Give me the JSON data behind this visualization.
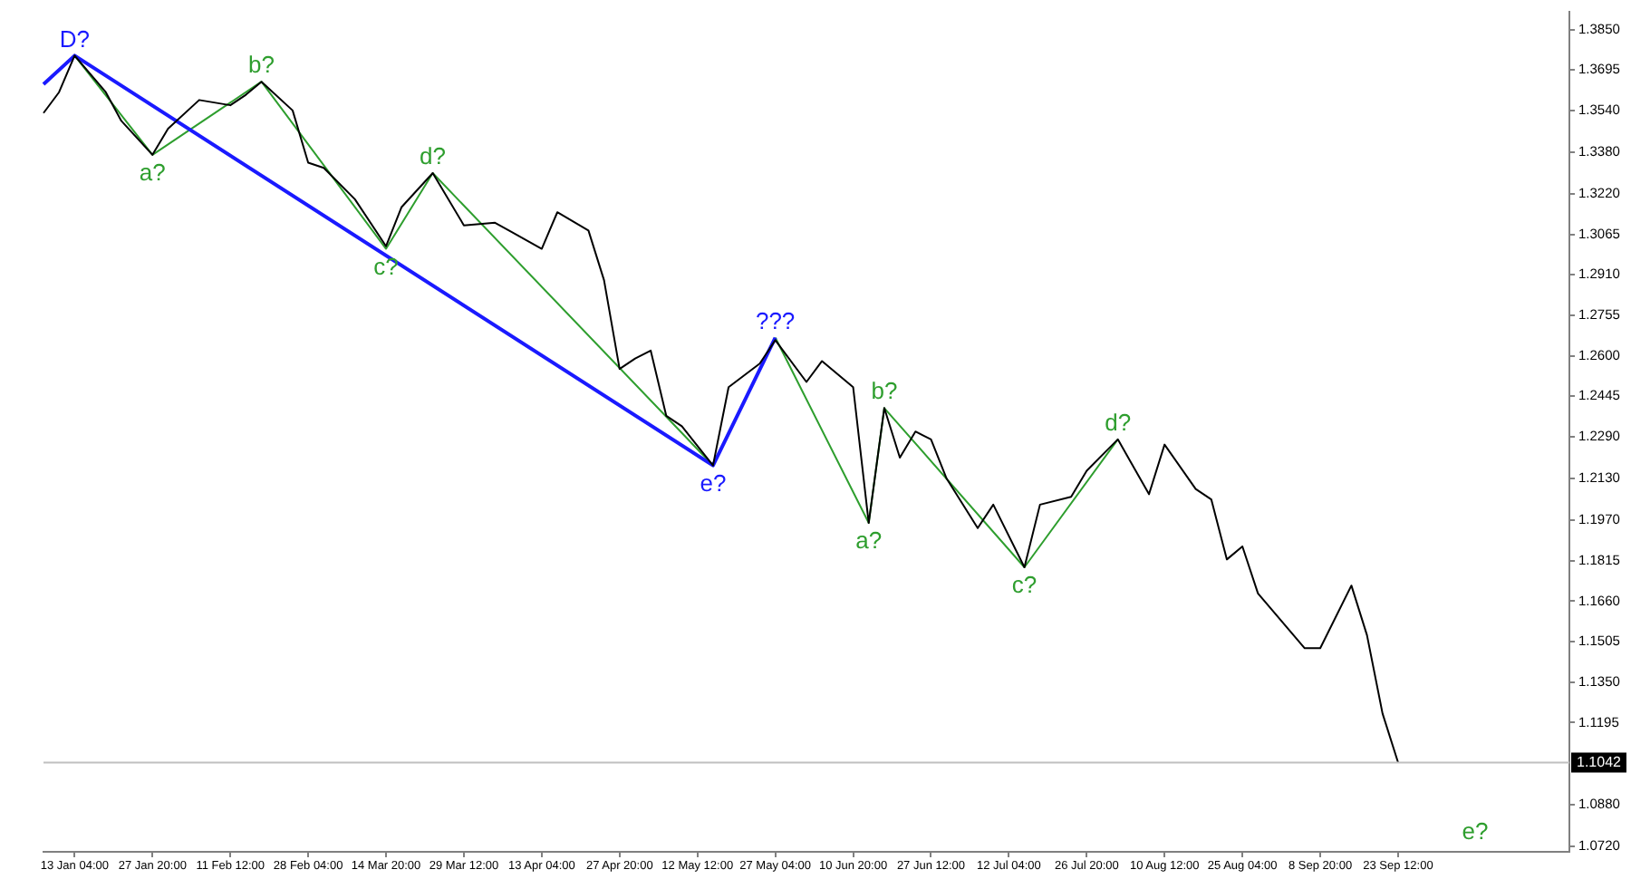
{
  "chart_data": {
    "type": "line",
    "categories": [
      null,
      null,
      "13 Jan 04:00",
      null,
      null,
      null,
      null,
      "27 Jan 20:00",
      null,
      null,
      null,
      null,
      "11 Feb 12:00",
      null,
      null,
      null,
      null,
      "28 Feb 04:00",
      null,
      null,
      null,
      null,
      "14 Mar 20:00",
      null,
      null,
      null,
      null,
      "29 Mar 12:00",
      null,
      null,
      null,
      null,
      "13 Apr 04:00",
      null,
      null,
      null,
      null,
      "27 Apr 20:00",
      null,
      null,
      null,
      null,
      "12 May 12:00",
      null,
      null,
      null,
      null,
      "27 May 04:00",
      null,
      null,
      null,
      null,
      "10 Jun 20:00",
      null,
      null,
      null,
      null,
      "27 Jun 12:00",
      null,
      null,
      null,
      null,
      "12 Jul 04:00",
      null,
      null,
      null,
      null,
      "26 Jul 20:00",
      null,
      null,
      null,
      null,
      "10 Aug 12:00",
      null,
      null,
      null,
      null,
      "25 Aug 04:00",
      null,
      null,
      null,
      null,
      "8 Sep 20:00",
      null,
      null,
      null,
      null,
      "23 Sep 12:00",
      null,
      null,
      null,
      null,
      null,
      null,
      null,
      null,
      null,
      null,
      null
    ],
    "ylim": [
      1.07,
      1.3918
    ],
    "yticks": [
      {
        "value": 1.385,
        "label": "1.3850"
      },
      {
        "value": 1.3695,
        "label": "1.3695"
      },
      {
        "value": 1.354,
        "label": "1.3540"
      },
      {
        "value": 1.338,
        "label": "1.3380"
      },
      {
        "value": 1.322,
        "label": "1.3220"
      },
      {
        "value": 1.3065,
        "label": "1.3065"
      },
      {
        "value": 1.291,
        "label": "1.2910"
      },
      {
        "value": 1.2755,
        "label": "1.2755"
      },
      {
        "value": 1.26,
        "label": "1.2600"
      },
      {
        "value": 1.2445,
        "label": "1.2445"
      },
      {
        "value": 1.229,
        "label": "1.2290"
      },
      {
        "value": 1.213,
        "label": "1.2130"
      },
      {
        "value": 1.197,
        "label": "1.1970"
      },
      {
        "value": 1.1815,
        "label": "1.1815"
      },
      {
        "value": 1.166,
        "label": "1.1660"
      },
      {
        "value": 1.1505,
        "label": "1.1505"
      },
      {
        "value": 1.135,
        "label": "1.1350"
      },
      {
        "value": 1.1195,
        "label": "1.1195"
      },
      {
        "value": 1.088,
        "label": "1.0880"
      },
      {
        "value": 1.072,
        "label": "1.0720"
      }
    ],
    "grid": false,
    "legend": false,
    "marker": "none",
    "series": [
      {
        "color": "#000000",
        "values": [
          1.353,
          1.361,
          1.375,
          null,
          1.361,
          1.35,
          null,
          1.337,
          1.347,
          null,
          1.358,
          null,
          1.356,
          1.36,
          1.365,
          null,
          1.354,
          1.334,
          1.332,
          null,
          1.32,
          null,
          1.302,
          1.317,
          null,
          1.33,
          null,
          1.31,
          null,
          1.311,
          null,
          null,
          1.301,
          1.315,
          null,
          1.308,
          1.289,
          1.255,
          1.259,
          1.262,
          1.237,
          1.233,
          null,
          1.218,
          1.248,
          null,
          1.257,
          1.266,
          null,
          1.25,
          1.258,
          null,
          1.248,
          1.196,
          1.24,
          1.221,
          1.231,
          1.228,
          1.213,
          null,
          1.194,
          1.203,
          null,
          1.179,
          1.203,
          null,
          1.206,
          1.216,
          null,
          1.228,
          null,
          1.207,
          1.226,
          null,
          1.209,
          1.205,
          1.182,
          1.187,
          1.169,
          null,
          null,
          1.148,
          1.148,
          null,
          1.172,
          1.153,
          1.123,
          1.1042,
          null,
          null,
          null,
          null,
          null,
          null,
          null,
          null,
          null,
          null,
          null
        ]
      },
      {
        "color": "#1a1aff",
        "values": [
          1.364,
          null,
          1.375,
          null,
          null,
          null,
          null,
          null,
          null,
          null,
          null,
          null,
          null,
          null,
          null,
          null,
          null,
          null,
          null,
          null,
          null,
          null,
          null,
          null,
          null,
          null,
          null,
          null,
          null,
          null,
          null,
          null,
          null,
          null,
          null,
          null,
          null,
          null,
          null,
          null,
          null,
          null,
          null,
          1.218,
          null,
          null,
          null,
          1.267,
          null,
          null,
          null,
          null,
          null,
          null,
          null,
          null,
          null,
          null,
          null,
          null,
          null,
          null,
          null,
          null,
          null,
          null,
          null,
          null,
          null,
          null,
          null,
          null,
          null,
          null,
          null,
          null,
          null,
          null,
          null,
          null,
          null,
          null,
          null,
          null,
          null,
          null,
          null,
          null,
          null,
          null,
          null,
          null,
          null,
          null,
          null,
          null,
          null,
          null,
          null
        ]
      },
      {
        "color": "#2e9e2e",
        "values": [
          null,
          null,
          1.375,
          null,
          null,
          null,
          null,
          1.337,
          null,
          null,
          null,
          null,
          null,
          null,
          1.365,
          null,
          null,
          null,
          null,
          null,
          null,
          null,
          1.301,
          null,
          null,
          1.33,
          null,
          null,
          null,
          null,
          null,
          null,
          null,
          null,
          null,
          null,
          null,
          null,
          null,
          null,
          null,
          null,
          null,
          1.218,
          null,
          null,
          null,
          null,
          null,
          null,
          null,
          null,
          null,
          null,
          null,
          null,
          null,
          null,
          null,
          null,
          null,
          null,
          null,
          null,
          null,
          null,
          null,
          null,
          null,
          null,
          null,
          null,
          null,
          null,
          null,
          null,
          null,
          null,
          null,
          null,
          null,
          null,
          null,
          null,
          null,
          null,
          null,
          null,
          null,
          null,
          null,
          null,
          null,
          null,
          null,
          null,
          null,
          null,
          null
        ]
      },
      {
        "color": "#2e9e2e",
        "values": [
          null,
          null,
          null,
          null,
          null,
          null,
          null,
          null,
          null,
          null,
          null,
          null,
          null,
          null,
          null,
          null,
          null,
          null,
          null,
          null,
          null,
          null,
          null,
          null,
          null,
          null,
          null,
          null,
          null,
          null,
          null,
          null,
          null,
          null,
          null,
          null,
          null,
          null,
          null,
          null,
          null,
          null,
          null,
          null,
          null,
          null,
          null,
          1.267,
          null,
          null,
          null,
          null,
          null,
          1.196,
          1.24,
          null,
          null,
          null,
          null,
          null,
          null,
          null,
          null,
          1.179,
          null,
          null,
          null,
          null,
          null,
          1.228,
          null,
          null,
          null,
          null,
          null,
          null,
          null,
          null,
          null,
          null,
          null,
          null,
          null,
          null,
          null,
          null,
          null,
          null,
          null,
          null,
          null,
          null,
          null,
          null,
          null,
          null,
          null,
          null,
          null
        ]
      }
    ],
    "ref_lines": [
      {
        "axis": "y",
        "value": 1.1042,
        "label": "1.1042",
        "color": "#c0c0c0"
      }
    ],
    "annotations": [
      {
        "text": "D?",
        "y": 1.375
      },
      {
        "text": "a?",
        "y": 1.337
      },
      {
        "text": "b?",
        "y": 1.365
      },
      {
        "text": "c?",
        "y": 1.301
      },
      {
        "text": "d?",
        "y": 1.33
      },
      {
        "text": "e?",
        "y": 1.218
      },
      {
        "text": "???",
        "y": 1.267
      },
      {
        "text": "a?",
        "y": 1.196
      },
      {
        "text": "b?",
        "y": 1.24
      },
      {
        "text": "c?",
        "y": 1.179
      },
      {
        "text": "d?",
        "y": 1.228
      },
      "e?"
    ]
  }
}
